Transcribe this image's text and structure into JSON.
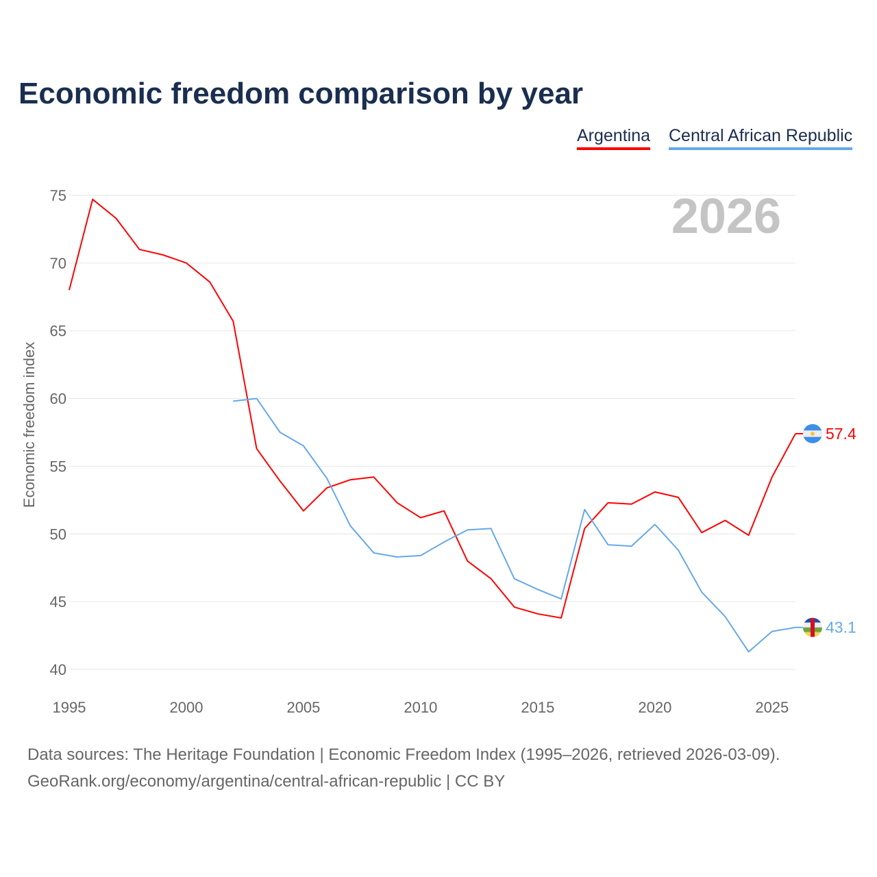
{
  "chart_data": {
    "type": "line",
    "title": "Economic freedom comparison by year",
    "xlabel": "",
    "ylabel": "Economic freedom index",
    "ylim": [
      40,
      75
    ],
    "xlim": [
      1995,
      2026
    ],
    "yticks": [
      "40",
      "45",
      "50",
      "55",
      "60",
      "65",
      "70",
      "75"
    ],
    "xticks": [
      "1995",
      "2000",
      "2005",
      "2010",
      "2015",
      "2020",
      "2025"
    ],
    "grid": true,
    "legend_position": "top-right",
    "current_year_label": "2026",
    "series": [
      {
        "name": "Argentina",
        "color": "#ff0000",
        "end_label": "57.4",
        "flag": "argentina-flag-icon",
        "x": [
          1995,
          1996,
          1997,
          1998,
          1999,
          2000,
          2001,
          2002,
          2003,
          2004,
          2005,
          2006,
          2007,
          2008,
          2009,
          2010,
          2011,
          2012,
          2013,
          2014,
          2015,
          2016,
          2017,
          2018,
          2019,
          2020,
          2021,
          2022,
          2023,
          2024,
          2025,
          2026
        ],
        "values": [
          68.0,
          74.7,
          73.3,
          71.0,
          70.6,
          70.0,
          68.6,
          65.7,
          56.3,
          53.9,
          51.7,
          53.4,
          54.0,
          54.2,
          52.3,
          51.2,
          51.7,
          48.0,
          46.7,
          44.6,
          44.1,
          43.8,
          50.4,
          52.3,
          52.2,
          53.1,
          52.7,
          50.1,
          51.0,
          49.9,
          54.2,
          57.4
        ]
      },
      {
        "name": "Central African Republic",
        "color": "#64a8ec",
        "end_label": "43.1",
        "flag": "central-african-republic-flag-icon",
        "x": [
          2002,
          2003,
          2004,
          2005,
          2006,
          2007,
          2008,
          2009,
          2010,
          2011,
          2012,
          2013,
          2014,
          2015,
          2016,
          2017,
          2018,
          2019,
          2020,
          2021,
          2022,
          2023,
          2024,
          2025,
          2026
        ],
        "values": [
          59.8,
          60.0,
          57.5,
          56.5,
          54.1,
          50.6,
          48.6,
          48.3,
          48.4,
          49.4,
          50.3,
          50.4,
          46.7,
          45.9,
          45.2,
          51.8,
          49.2,
          49.1,
          50.7,
          48.8,
          45.7,
          43.9,
          41.3,
          42.8,
          43.1
        ]
      }
    ]
  },
  "footer": {
    "line1": "Data sources: The Heritage Foundation | Economic Freedom Index (1995–2026, retrieved 2026-03-09).",
    "line2": "GeoRank.org/economy/argentina/central-african-republic | CC BY"
  }
}
